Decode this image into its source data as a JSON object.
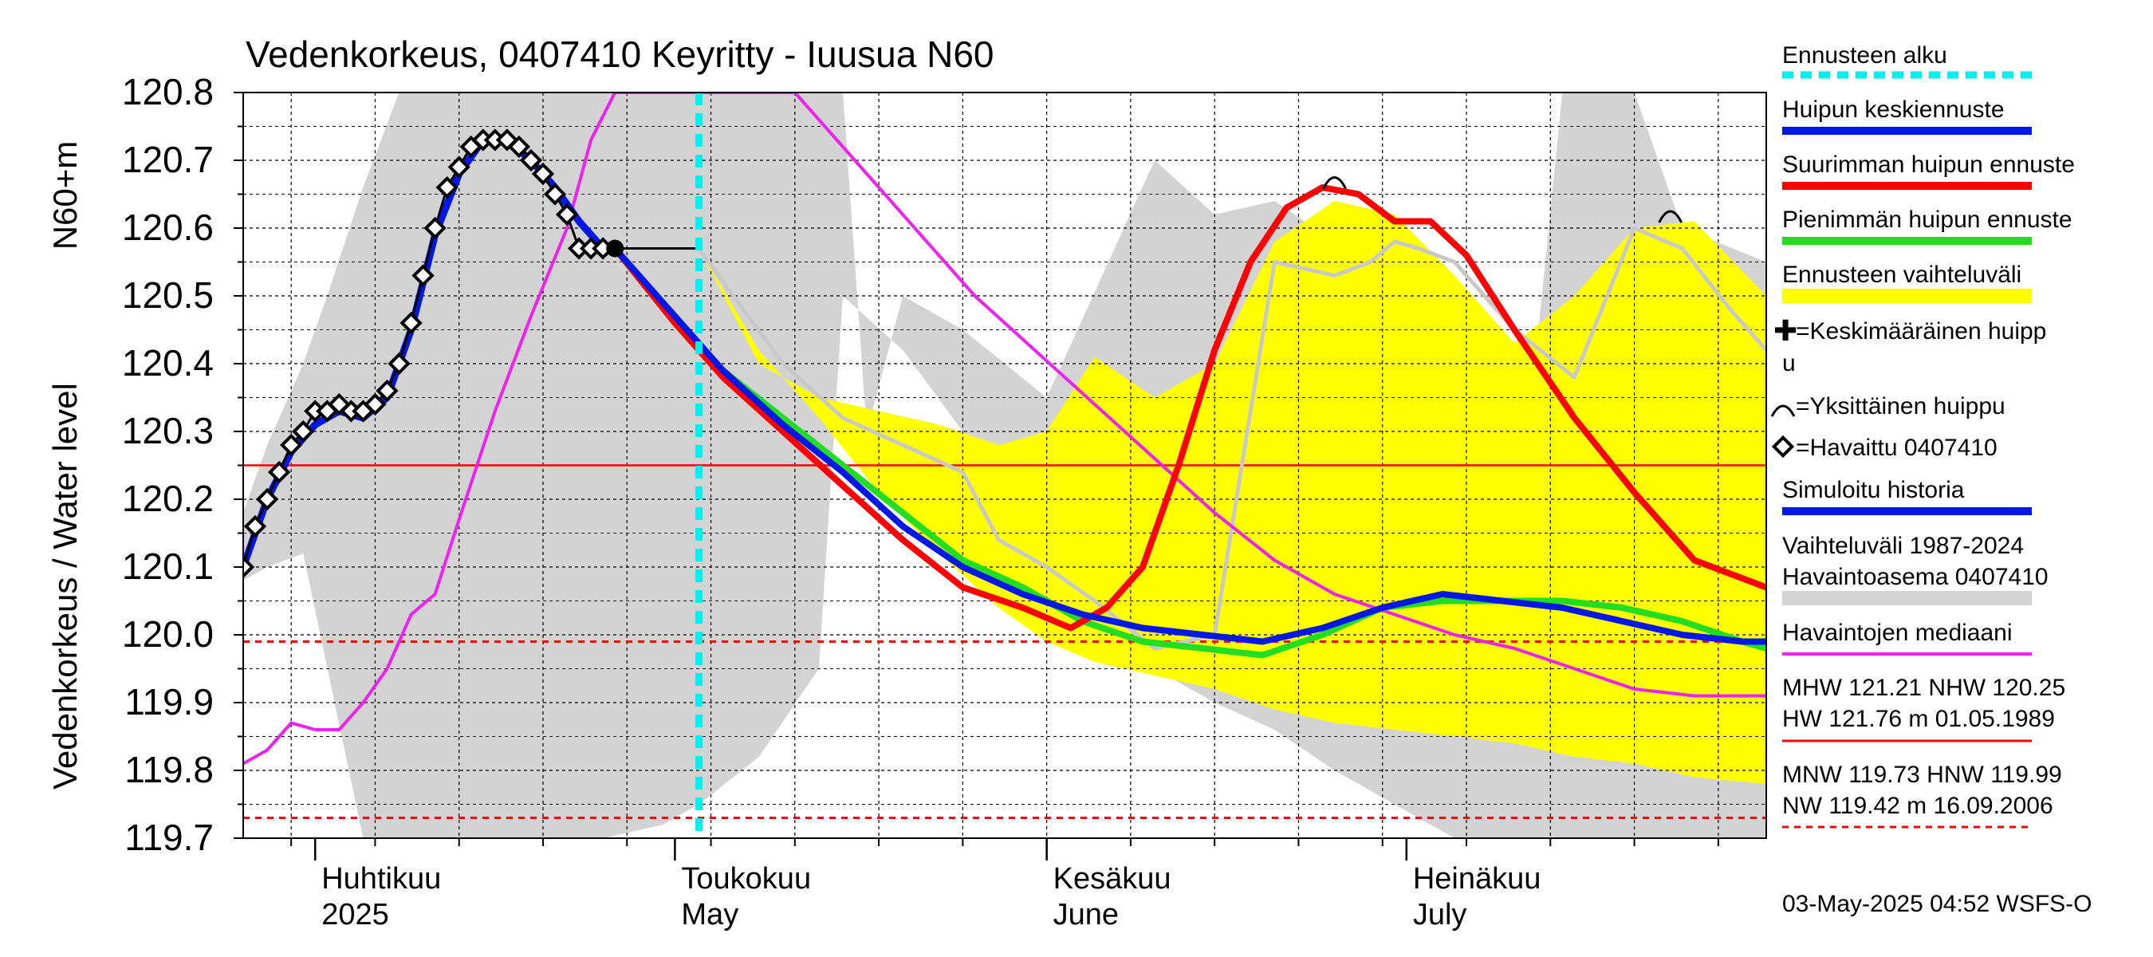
{
  "chart_data": {
    "type": "line",
    "title": "Vedenkorkeus, 0407410 Keyritty - Iuusua N60",
    "ylabel_outer": "Vedenkorkeus / Water level",
    "ylabel_inner": "N60+m",
    "ylim": [
      119.7,
      120.8
    ],
    "yticks": [
      "120.8",
      "120.7",
      "120.6",
      "120.5",
      "120.4",
      "120.3",
      "120.2",
      "120.1",
      "120.0",
      "119.9",
      "119.8",
      "119.7"
    ],
    "xlim": [
      "2025-03-26",
      "2025-07-31"
    ],
    "month_labels": [
      {
        "fi": "Huhtikuu",
        "en": "2025",
        "date": "2025-04-01"
      },
      {
        "fi": "Toukokuu",
        "en": "May",
        "date": "2025-05-01"
      },
      {
        "fi": "Kesäkuu",
        "en": "June",
        "date": "2025-06-01"
      },
      {
        "fi": "Heinäkuu",
        "en": "July",
        "date": "2025-07-01"
      }
    ],
    "forecast_start": "2025-05-03",
    "footer": "03-May-2025 04:52 WSFS-O",
    "colors": {
      "hist_band": "#d3d3d3",
      "forecast_band": "#ffff00",
      "mean_forecast": "#0018e6",
      "max_forecast": "#ff0000",
      "min_forecast": "#22dd22",
      "median": "#ee22ee",
      "observed": "#000000",
      "forecast_start": "#00eeee",
      "grey_line": "#c8c8c8"
    },
    "ref_lines": {
      "nhw": 120.25,
      "hnw": 119.99,
      "nw_low": 119.73
    },
    "legend": {
      "forecast_start": "Ennusteen alku",
      "mean_peak": "Huipun keskiennuste",
      "max_peak": "Suurimman huipun ennuste",
      "min_peak": "Pienimmän huipun ennuste",
      "range": "Ennusteen vaihteluväli",
      "avg_peak_1": "=Keskimääräinen huipp",
      "avg_peak_2": "u",
      "single_peak": "=Yksittäinen huippu",
      "observed": "=Havaittu 0407410",
      "simulated": "Simuloitu historia",
      "hist_range_1": "Vaihteluväli 1987-2024",
      "hist_range_2": " Havaintoasema 0407410",
      "median": "Havaintojen mediaani",
      "mhw_1": "MHW 121.21 NHW 120.25",
      "mhw_2": "HW 121.76 m 01.05.1989",
      "mnw_1": "MNW 119.73 HNW 119.99",
      "mnw_2": "NW 119.42 m 16.09.2006"
    },
    "series": {
      "observed": {
        "x": [
          "2025-03-26",
          "2025-03-27",
          "2025-03-28",
          "2025-03-29",
          "2025-03-30",
          "2025-03-31",
          "2025-04-01",
          "2025-04-02",
          "2025-04-03",
          "2025-04-04",
          "2025-04-05",
          "2025-04-06",
          "2025-04-07",
          "2025-04-08",
          "2025-04-09",
          "2025-04-10",
          "2025-04-11",
          "2025-04-12",
          "2025-04-13",
          "2025-04-14",
          "2025-04-15",
          "2025-04-16",
          "2025-04-17",
          "2025-04-18",
          "2025-04-19",
          "2025-04-20",
          "2025-04-21",
          "2025-04-22",
          "2025-04-23",
          "2025-04-24",
          "2025-04-25",
          "2025-04-26",
          "2025-04-27",
          "2025-04-28",
          "2025-04-29",
          "2025-04-30",
          "2025-05-01",
          "2025-05-02",
          "2025-05-03"
        ],
        "y": [
          120.1,
          120.16,
          120.2,
          120.24,
          120.28,
          120.3,
          120.33,
          120.33,
          120.34,
          120.33,
          120.33,
          120.34,
          120.36,
          120.4,
          120.46,
          120.53,
          120.6,
          120.66,
          120.69,
          120.72,
          120.73,
          120.73,
          120.73,
          120.72,
          120.7,
          120.68,
          120.65,
          120.62,
          120.57,
          120.57,
          120.57,
          120.57,
          120.57,
          120.57,
          120.57,
          120.57,
          120.57,
          120.57,
          120.57
        ]
      },
      "simulated": {
        "x": [
          "2025-03-26",
          "2025-03-28",
          "2025-03-30",
          "2025-04-01",
          "2025-04-03",
          "2025-04-05",
          "2025-04-07",
          "2025-04-09",
          "2025-04-11",
          "2025-04-13",
          "2025-04-15",
          "2025-04-17",
          "2025-04-19",
          "2025-04-21",
          "2025-04-23",
          "2025-04-25",
          "2025-04-26"
        ],
        "y": [
          120.1,
          120.2,
          120.27,
          120.31,
          120.33,
          120.32,
          120.35,
          120.45,
          120.59,
          120.68,
          120.73,
          120.73,
          120.7,
          120.66,
          120.61,
          120.57,
          120.57
        ]
      },
      "mean_forecast": {
        "x": [
          "2025-04-26",
          "2025-05-01",
          "2025-05-05",
          "2025-05-10",
          "2025-05-15",
          "2025-05-20",
          "2025-05-25",
          "2025-05-30",
          "2025-06-04",
          "2025-06-09",
          "2025-06-14",
          "2025-06-19",
          "2025-06-24",
          "2025-06-29",
          "2025-07-04",
          "2025-07-09",
          "2025-07-14",
          "2025-07-19",
          "2025-07-24",
          "2025-07-29",
          "2025-07-31"
        ],
        "y": [
          120.57,
          120.47,
          120.39,
          120.31,
          120.24,
          120.16,
          120.1,
          120.06,
          120.03,
          120.01,
          120.0,
          119.99,
          120.01,
          120.04,
          120.06,
          120.05,
          120.04,
          120.02,
          120.0,
          119.99,
          119.99
        ]
      },
      "max_forecast": {
        "x": [
          "2025-04-26",
          "2025-05-01",
          "2025-05-05",
          "2025-05-10",
          "2025-05-15",
          "2025-05-20",
          "2025-05-25",
          "2025-05-30",
          "2025-06-03",
          "2025-06-06",
          "2025-06-09",
          "2025-06-12",
          "2025-06-15",
          "2025-06-18",
          "2025-06-21",
          "2025-06-24",
          "2025-06-27",
          "2025-06-30",
          "2025-07-03",
          "2025-07-06",
          "2025-07-10",
          "2025-07-15",
          "2025-07-20",
          "2025-07-25",
          "2025-07-31"
        ],
        "y": [
          120.57,
          120.46,
          120.38,
          120.3,
          120.22,
          120.14,
          120.07,
          120.04,
          120.01,
          120.04,
          120.1,
          120.25,
          120.42,
          120.55,
          120.63,
          120.66,
          120.65,
          120.61,
          120.61,
          120.56,
          120.45,
          120.32,
          120.21,
          120.11,
          120.07
        ]
      },
      "min_forecast": {
        "x": [
          "2025-04-26",
          "2025-05-01",
          "2025-05-05",
          "2025-05-10",
          "2025-05-15",
          "2025-05-20",
          "2025-05-25",
          "2025-05-30",
          "2025-06-04",
          "2025-06-09",
          "2025-06-14",
          "2025-06-19",
          "2025-06-24",
          "2025-06-29",
          "2025-07-04",
          "2025-07-09",
          "2025-07-14",
          "2025-07-19",
          "2025-07-24",
          "2025-07-29",
          "2025-07-31"
        ],
        "y": [
          120.57,
          120.46,
          120.39,
          120.32,
          120.25,
          120.18,
          120.11,
          120.07,
          120.02,
          119.99,
          119.98,
          119.97,
          120.0,
          120.04,
          120.05,
          120.05,
          120.05,
          120.04,
          120.02,
          119.99,
          119.98
        ]
      },
      "forecast_band_upper": {
        "x": [
          "2025-05-03",
          "2025-05-08",
          "2025-05-13",
          "2025-05-18",
          "2025-05-23",
          "2025-05-28",
          "2025-06-01",
          "2025-06-05",
          "2025-06-10",
          "2025-06-15",
          "2025-06-20",
          "2025-06-25",
          "2025-06-30",
          "2025-07-05",
          "2025-07-10",
          "2025-07-15",
          "2025-07-20",
          "2025-07-25",
          "2025-07-31"
        ],
        "y": [
          120.57,
          120.4,
          120.35,
          120.33,
          120.31,
          120.28,
          120.3,
          120.41,
          120.35,
          120.4,
          120.58,
          120.64,
          120.62,
          120.53,
          120.43,
          120.5,
          120.6,
          120.61,
          120.5
        ]
      },
      "forecast_band_lower": {
        "x": [
          "2025-05-03",
          "2025-05-08",
          "2025-05-13",
          "2025-05-18",
          "2025-05-23",
          "2025-05-28",
          "2025-06-01",
          "2025-06-05",
          "2025-06-10",
          "2025-06-15",
          "2025-06-20",
          "2025-06-25",
          "2025-06-30",
          "2025-07-05",
          "2025-07-10",
          "2025-07-15",
          "2025-07-20",
          "2025-07-25",
          "2025-07-31"
        ],
        "y": [
          120.57,
          120.42,
          120.32,
          120.21,
          120.12,
          120.04,
          119.99,
          119.96,
          119.94,
          119.92,
          119.89,
          119.87,
          119.86,
          119.85,
          119.84,
          119.82,
          119.81,
          119.79,
          119.78
        ]
      },
      "hist_band_upper": {
        "x": [
          "2025-03-26",
          "2025-03-28",
          "2025-03-31",
          "2025-04-02",
          "2025-04-05",
          "2025-04-08",
          "2025-04-10",
          "2025-04-14",
          "2025-04-20",
          "2025-04-30",
          "2025-05-10",
          "2025-05-15",
          "2025-05-17",
          "2025-05-20",
          "2025-05-25",
          "2025-06-01",
          "2025-06-10",
          "2025-06-15",
          "2025-06-20",
          "2025-06-25",
          "2025-06-30",
          "2025-07-05",
          "2025-07-10",
          "2025-07-12",
          "2025-07-14",
          "2025-07-16",
          "2025-07-20",
          "2025-07-24",
          "2025-07-31"
        ],
        "y": [
          120.18,
          120.28,
          120.4,
          120.5,
          120.66,
          120.8,
          120.8,
          120.8,
          120.8,
          120.8,
          120.8,
          120.8,
          120.3,
          120.5,
          120.45,
          120.35,
          120.7,
          120.62,
          120.64,
          120.58,
          120.54,
          120.48,
          120.41,
          120.45,
          120.8,
          120.8,
          120.8,
          120.6,
          120.55
        ]
      },
      "hist_band_lower": {
        "x": [
          "2025-03-26",
          "2025-03-28",
          "2025-03-31",
          "2025-04-05",
          "2025-04-10",
          "2025-04-15",
          "2025-04-20",
          "2025-04-25",
          "2025-04-30",
          "2025-05-03",
          "2025-05-08",
          "2025-05-13",
          "2025-05-15",
          "2025-05-20",
          "2025-05-25",
          "2025-06-01",
          "2025-06-05",
          "2025-06-10",
          "2025-06-15",
          "2025-06-20",
          "2025-06-25",
          "2025-06-30",
          "2025-07-05",
          "2025-07-10",
          "2025-07-15",
          "2025-07-20",
          "2025-07-25",
          "2025-07-31"
        ],
        "y": [
          120.08,
          120.1,
          120.12,
          119.7,
          119.7,
          119.7,
          119.7,
          119.7,
          119.72,
          119.75,
          119.82,
          119.95,
          120.5,
          120.42,
          120.3,
          120.1,
          120.0,
          119.95,
          119.9,
          119.86,
          119.8,
          119.75,
          119.7,
          119.7,
          119.7,
          119.7,
          119.7,
          119.7
        ]
      },
      "grey_line": {
        "x": [
          "2025-05-03",
          "2025-05-10",
          "2025-05-15",
          "2025-05-20",
          "2025-05-25",
          "2025-05-28",
          "2025-06-01",
          "2025-06-05",
          "2025-06-10",
          "2025-06-15",
          "2025-06-20",
          "2025-06-25",
          "2025-06-28",
          "2025-06-30",
          "2025-07-02",
          "2025-07-05",
          "2025-07-10",
          "2025-07-15",
          "2025-07-20",
          "2025-07-24",
          "2025-07-28",
          "2025-07-31"
        ],
        "y": [
          120.57,
          120.4,
          120.32,
          120.28,
          120.24,
          120.14,
          120.1,
          120.05,
          119.98,
          120.0,
          120.55,
          120.53,
          120.55,
          120.58,
          120.57,
          120.55,
          120.45,
          120.38,
          120.6,
          120.57,
          120.48,
          120.42
        ]
      },
      "median": {
        "x": [
          "2025-03-26",
          "2025-03-28",
          "2025-03-30",
          "2025-04-01",
          "2025-04-03",
          "2025-04-05",
          "2025-04-07",
          "2025-04-09",
          "2025-04-11",
          "2025-04-13",
          "2025-04-16",
          "2025-04-19",
          "2025-04-22",
          "2025-04-24",
          "2025-04-26",
          "2025-05-01",
          "2025-05-06",
          "2025-05-11",
          "2025-05-16",
          "2025-05-21",
          "2025-05-26",
          "2025-05-31",
          "2025-06-05",
          "2025-06-10",
          "2025-06-15",
          "2025-06-20",
          "2025-06-25",
          "2025-06-30",
          "2025-07-05",
          "2025-07-10",
          "2025-07-15",
          "2025-07-20",
          "2025-07-25",
          "2025-07-31"
        ],
        "y": [
          119.81,
          119.83,
          119.87,
          119.86,
          119.86,
          119.9,
          119.95,
          120.03,
          120.06,
          120.17,
          120.33,
          120.47,
          120.6,
          120.73,
          120.8,
          120.8,
          120.8,
          120.8,
          120.7,
          120.6,
          120.5,
          120.42,
          120.34,
          120.26,
          120.18,
          120.11,
          120.06,
          120.03,
          120.0,
          119.98,
          119.95,
          119.92,
          119.91,
          119.91
        ]
      }
    },
    "peaks": [
      {
        "date": "2025-06-25",
        "value": 120.67
      },
      {
        "date": "2025-07-23",
        "value": 120.62
      }
    ]
  }
}
